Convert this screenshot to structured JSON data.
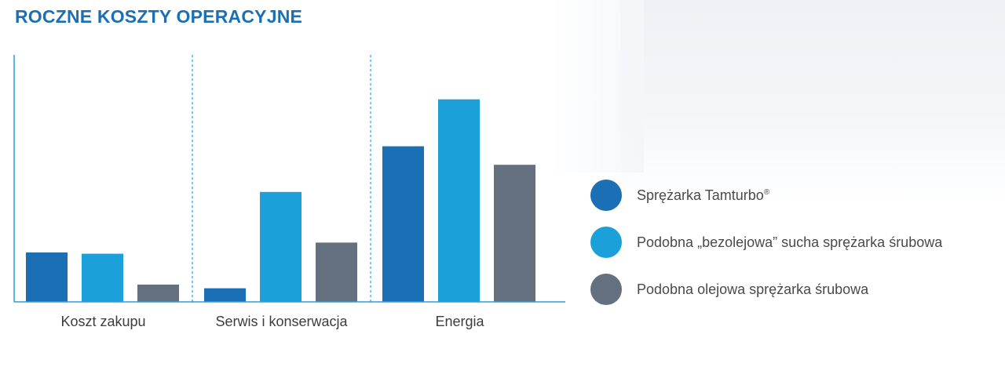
{
  "title": "ROCZNE KOSZTY OPERACYJNE",
  "colors": {
    "title": "#1a6fb5",
    "axis": "#2a9fd8",
    "series": [
      "#1a6fb5",
      "#1ca0da",
      "#64707f"
    ]
  },
  "legend": [
    {
      "label": "Sprężarka Tamturbo",
      "suffix": "®"
    },
    {
      "label": "Podobna „bezolejowa” sucha sprężarka śrubowa",
      "suffix": ""
    },
    {
      "label": "Podobna olejowa sprężarka śrubowa",
      "suffix": ""
    }
  ],
  "chart_data": {
    "type": "bar",
    "title": "ROCZNE KOSZTY OPERACYJNE",
    "categories": [
      "Koszt zakupu",
      "Serwis i konserwacja",
      "Energia"
    ],
    "series": [
      {
        "name": "Sprężarka Tamturbo®",
        "values": [
          20,
          5.5,
          63
        ]
      },
      {
        "name": "Podobna „bezolejowa” sucha sprężarka śrubowa",
        "values": [
          19.5,
          44.5,
          82
        ]
      },
      {
        "name": "Podobna olejowa sprężarka śrubowa",
        "values": [
          7,
          24,
          55.5
        ]
      }
    ],
    "ylim": [
      0,
      100
    ],
    "y_axis_labels": false,
    "grid": false,
    "legend_position": "right"
  }
}
